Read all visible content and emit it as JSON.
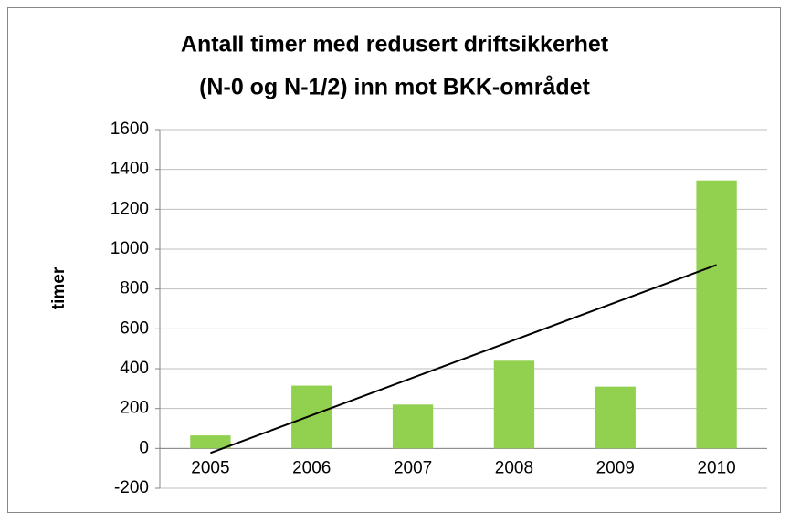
{
  "chart_data": {
    "type": "bar",
    "title": [
      "Antall timer med redusert driftsikkerhet",
      "(N-0 og N-1/2) inn mot BKK-området"
    ],
    "y_label": "timer",
    "categories": [
      "2005",
      "2006",
      "2007",
      "2008",
      "2009",
      "2010"
    ],
    "values": [
      65,
      315,
      220,
      440,
      310,
      1345
    ],
    "color": "#92d050",
    "trendline": "linear",
    "trendline_color": "#000000",
    "ylim": [
      -200,
      1600
    ],
    "yticks": [
      -200,
      0,
      200,
      400,
      600,
      800,
      1000,
      1200,
      1400,
      1600
    ],
    "grid": true
  }
}
